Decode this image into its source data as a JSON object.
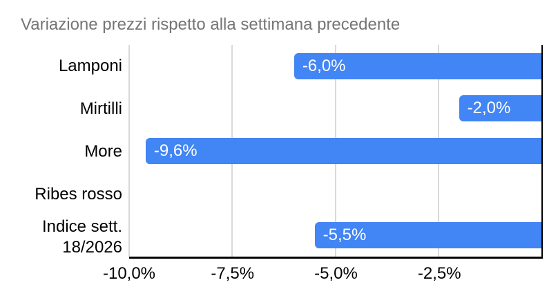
{
  "chart_data": {
    "type": "bar",
    "orientation": "horizontal",
    "title": "Variazione prezzi rispetto alla settimana precedente",
    "categories": [
      "Lamponi",
      "Mirtilli",
      "More",
      "Ribes rosso",
      "Indice sett.\n18/2026"
    ],
    "values": [
      -6.0,
      -2.0,
      -9.6,
      0.0,
      -5.5
    ],
    "data_labels": [
      "-6,0%",
      "-2,0%",
      "-9,6%",
      "",
      "-5,5%"
    ],
    "xlabel": "",
    "ylabel": "",
    "xlim": [
      -10,
      0
    ],
    "x_ticks": [
      {
        "value": -10.0,
        "label": "-10,0%"
      },
      {
        "value": -7.5,
        "label": "-7,5%"
      },
      {
        "value": -5.0,
        "label": "-5,0%"
      },
      {
        "value": -2.5,
        "label": "-2,5%"
      }
    ],
    "grid": true,
    "legend_position": "none",
    "colors": {
      "bar": "#4285f4",
      "title_text": "#757575",
      "axis_text": "#000000",
      "gridline": "#d9d9d9",
      "axis_line": "#000000",
      "background": "#ffffff",
      "bar_label_text": "#ffffff"
    }
  }
}
